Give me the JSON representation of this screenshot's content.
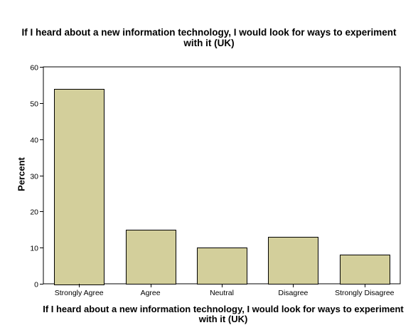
{
  "chart_data": {
    "type": "bar",
    "title": "If I heard about a new information technology, I would look for ways to experiment with it (UK)",
    "xlabel": "If I heard about a new information technology, I would look for ways to experiment with it (UK)",
    "ylabel": "Percent",
    "categories": [
      "Strongly Agree",
      "Agree",
      "Neutral",
      "Disagree",
      "Strongly Disagree"
    ],
    "values": [
      54,
      15,
      10,
      13,
      8
    ],
    "ylim": [
      0,
      60
    ],
    "yticks": [
      0,
      10,
      20,
      30,
      40,
      50,
      60
    ],
    "grid": false,
    "bar_color": "#d3cf9b",
    "bar_stroke": "#000000",
    "plot_background": "#ffffff"
  }
}
